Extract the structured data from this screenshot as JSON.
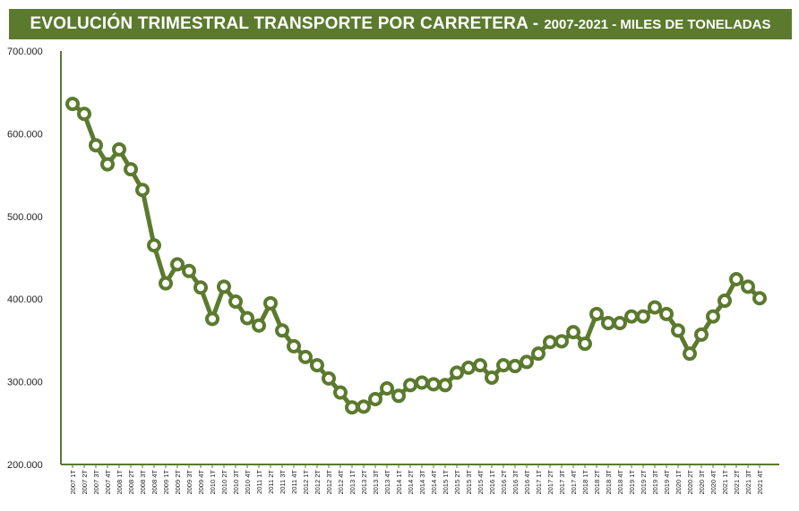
{
  "header": {
    "title_main": "EVOLUCIÓN TRIMESTRAL TRANSPORTE POR CARRETERA -",
    "title_sub": "2007-2021 - MILES DE TONELADAS"
  },
  "colors": {
    "title_bg": "#5b7a2e",
    "line": "#5b7a2e",
    "marker_fill": "#ffffff",
    "axis": "#5b7a2e"
  },
  "chart_data": {
    "type": "line",
    "title": "EVOLUCIÓN TRIMESTRAL TRANSPORTE POR CARRETERA - 2007-2021 - MILES DE TONELADAS",
    "ylim": [
      200000,
      700000
    ],
    "yticks": [
      200000,
      300000,
      400000,
      500000,
      600000,
      700000
    ],
    "ytick_labels": [
      "200.000",
      "300.000",
      "400.000",
      "500.000",
      "600.000",
      "700.000"
    ],
    "grid": false,
    "categories": [
      "2007 1T",
      "2007 2T",
      "2007 3T",
      "2007 4T",
      "2008 1T",
      "2008 2T",
      "2008 3T",
      "2008 4T",
      "2009 1T",
      "2009 2T",
      "2009 3T",
      "2009 4T",
      "2010 1T",
      "2010 2T",
      "2010 3T",
      "2010 4T",
      "2011 1T",
      "2011 2T",
      "2011 3T",
      "2011 4T",
      "2012 1T",
      "2012 2T",
      "2012 3T",
      "2012 4T",
      "2013 1T",
      "2013 2T",
      "2013 3T",
      "2013 4T",
      "2014 1T",
      "2014 2T",
      "2014 3T",
      "2014 4T",
      "2015 1T",
      "2015 2T",
      "2015 3T",
      "2015 4T",
      "2016 1T",
      "2016 2T",
      "2016 3T",
      "2016 4T",
      "2017 1T",
      "2017 2T",
      "2017 3T",
      "2017 4T",
      "2018 1T",
      "2018 2T",
      "2018 3T",
      "2018 4T",
      "2019 1T",
      "2019 2T",
      "2019 3T",
      "2019 4T",
      "2020 1T",
      "2020 2T",
      "2020 3T",
      "2020 4T",
      "2021 1T",
      "2021 2T",
      "2021 3T",
      "2021 4T"
    ],
    "series": [
      {
        "values": [
          636000,
          624000,
          586000,
          563000,
          581000,
          557000,
          532000,
          465000,
          419000,
          442000,
          434000,
          414000,
          376000,
          415000,
          397000,
          377000,
          368000,
          395000,
          362000,
          343000,
          330000,
          320000,
          304000,
          287000,
          269000,
          270000,
          279000,
          292000,
          283000,
          296000,
          299000,
          297000,
          296000,
          311000,
          317000,
          320000,
          305000,
          320000,
          319000,
          324000,
          334000,
          348000,
          349000,
          360000,
          346000,
          382000,
          371000,
          371000,
          379000,
          379000,
          390000,
          382000,
          362000,
          334000,
          357000,
          379000,
          398000,
          424000,
          415000,
          401000
        ]
      }
    ]
  }
}
